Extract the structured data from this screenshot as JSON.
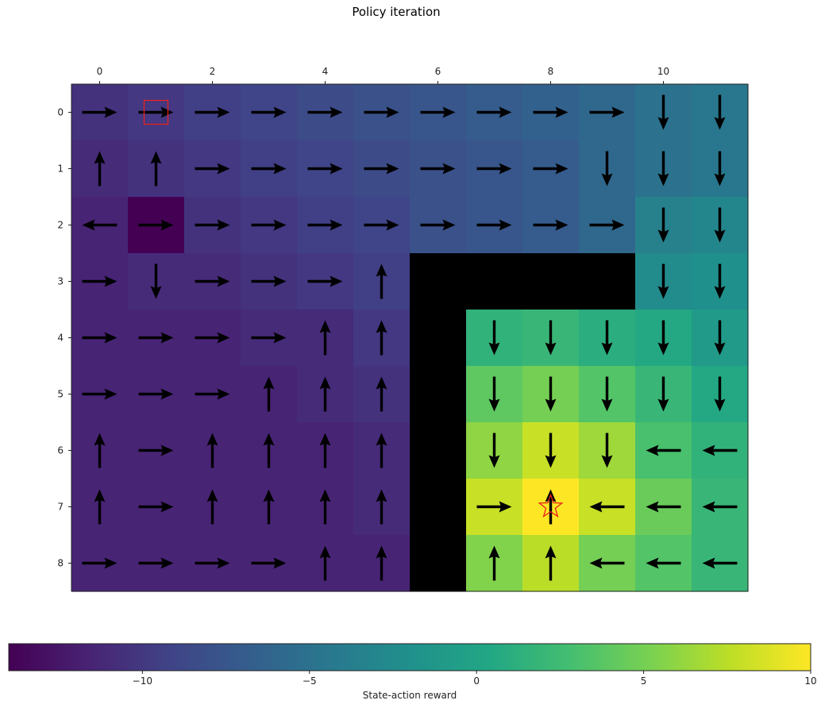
{
  "title": "Policy iteration",
  "colorbar": {
    "label": "State-action reward",
    "range": [
      -14,
      10
    ],
    "ticks": [
      -10,
      -5,
      0,
      5,
      10
    ],
    "tick_labels": [
      "−10",
      "−5",
      "0",
      "5",
      "10"
    ],
    "colormap": "viridis"
  },
  "chart_data": {
    "type": "heatmap",
    "title": "Policy iteration",
    "rows": 9,
    "cols": 12,
    "x_ticks": [
      0,
      2,
      4,
      6,
      8,
      10
    ],
    "y_ticks": [
      0,
      1,
      2,
      3,
      4,
      5,
      6,
      7,
      8
    ],
    "x_tick_labels": [
      "0",
      "2",
      "4",
      "6",
      "8",
      "10"
    ],
    "y_tick_labels": [
      "0",
      "1",
      "2",
      "3",
      "4",
      "5",
      "6",
      "7",
      "8"
    ],
    "x_axis_position": "top",
    "value_range": [
      -14,
      10
    ],
    "values": [
      [
        -10.5,
        -10.0,
        -9.5,
        -9.0,
        -8.5,
        -8.0,
        -7.5,
        -7.0,
        -6.5,
        -6.0,
        -5.0,
        -4.5
      ],
      [
        -11.0,
        -10.5,
        -10.0,
        -9.5,
        -9.0,
        -8.5,
        -8.0,
        -7.5,
        -7.0,
        -6.0,
        -5.0,
        -4.5
      ],
      [
        -11.5,
        -14.0,
        -10.5,
        -10.0,
        -9.5,
        -9.0,
        -8.0,
        -7.5,
        -7.0,
        -6.0,
        -3.5,
        -3.0
      ],
      [
        -11.5,
        -11.0,
        -11.0,
        -10.5,
        -10.0,
        -9.5,
        null,
        null,
        null,
        null,
        -2.5,
        -2.0
      ],
      [
        -11.5,
        -11.5,
        -11.5,
        -11.0,
        -11.0,
        -10.0,
        null,
        1.5,
        2.0,
        1.0,
        0.5,
        -1.0
      ],
      [
        -11.5,
        -11.5,
        -11.5,
        -11.5,
        -11.0,
        -10.5,
        null,
        4.0,
        5.0,
        3.5,
        2.0,
        0.5
      ],
      [
        -11.5,
        -11.5,
        -11.5,
        -11.5,
        -11.5,
        -11.0,
        null,
        6.0,
        8.0,
        6.5,
        3.0,
        1.5
      ],
      [
        -11.5,
        -11.5,
        -11.5,
        -11.5,
        -11.5,
        -11.0,
        null,
        8.0,
        10.0,
        8.0,
        4.5,
        2.0
      ],
      [
        -11.5,
        -11.5,
        -11.5,
        -11.5,
        -11.5,
        -11.5,
        null,
        5.5,
        7.5,
        5.0,
        3.5,
        2.0
      ]
    ],
    "policy": [
      [
        "R",
        "R",
        "R",
        "R",
        "R",
        "R",
        "R",
        "R",
        "R",
        "R",
        "D",
        "D"
      ],
      [
        "U",
        "U",
        "R",
        "R",
        "R",
        "R",
        "R",
        "R",
        "R",
        "D",
        "D",
        "D"
      ],
      [
        "L",
        "R",
        "R",
        "R",
        "R",
        "R",
        "R",
        "R",
        "R",
        "R",
        "D",
        "D"
      ],
      [
        "R",
        "D",
        "R",
        "R",
        "R",
        "U",
        "",
        "",
        "",
        "",
        "D",
        "D"
      ],
      [
        "R",
        "R",
        "R",
        "R",
        "U",
        "U",
        "",
        "D",
        "D",
        "D",
        "D",
        "D"
      ],
      [
        "R",
        "R",
        "R",
        "U",
        "U",
        "U",
        "",
        "D",
        "D",
        "D",
        "D",
        "D"
      ],
      [
        "U",
        "R",
        "U",
        "U",
        "U",
        "U",
        "",
        "D",
        "D",
        "D",
        "L",
        "L"
      ],
      [
        "U",
        "R",
        "U",
        "U",
        "U",
        "U",
        "",
        "R",
        "U",
        "L",
        "L",
        "L"
      ],
      [
        "R",
        "R",
        "R",
        "R",
        "U",
        "U",
        "",
        "U",
        "U",
        "L",
        "L",
        "L"
      ]
    ],
    "start": [
      0,
      1
    ],
    "goal": [
      7,
      8
    ],
    "start_marker": "red-square",
    "goal_marker": "red-star"
  }
}
